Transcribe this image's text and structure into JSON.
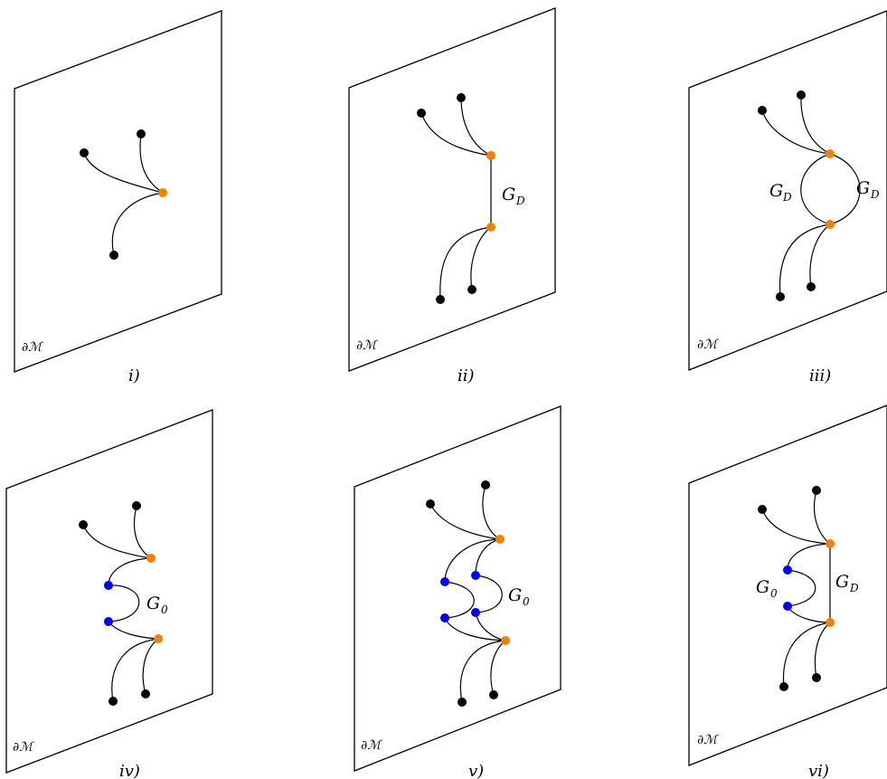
{
  "colors": {
    "external_vertex": "#000000",
    "interaction_vertex": "#f57f00",
    "bulk_vertex": "#0000ee",
    "line": "#000000"
  },
  "labels": {
    "boundary": "∂ℳ",
    "panel_i": "i)",
    "panel_ii": "ii)",
    "panel_iii": "iii)",
    "panel_iv": "iv)",
    "panel_v": "v)",
    "panel_vi": "vi)",
    "G": "G",
    "sub_D": "D",
    "sub_0": "0"
  }
}
